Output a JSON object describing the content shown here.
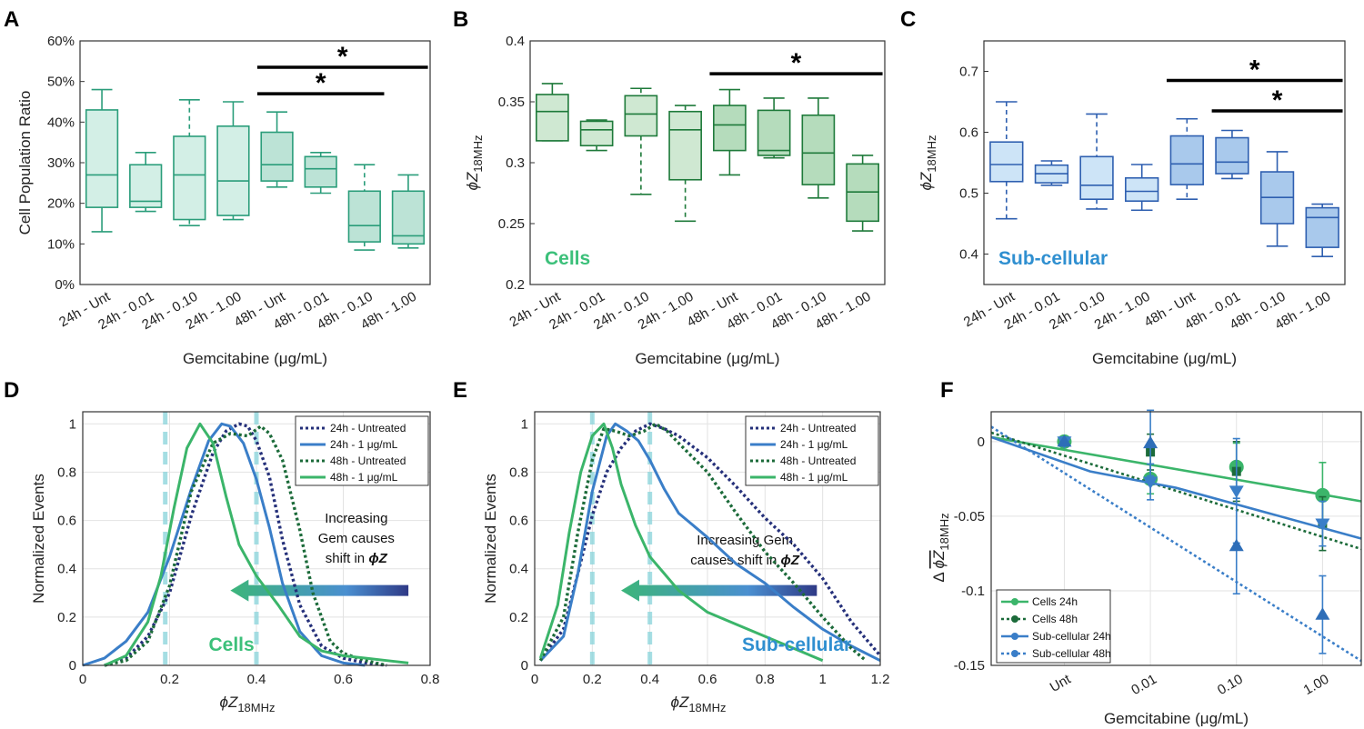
{
  "panel_labels": [
    "A",
    "B",
    "C",
    "D",
    "E",
    "F"
  ],
  "colors": {
    "A_stroke": "#2a9d7a",
    "A_fill": "#d3efe6",
    "A_fill48": "#bce3d6",
    "B_stroke": "#1e7a3a",
    "B_fill": "#cfe8d2",
    "B_fill48": "#b5dcbc",
    "C_stroke": "#2e5fb0",
    "C_fill": "#cde4f7",
    "C_fill48": "#a9c9ec",
    "cells_green": "#3bb56a",
    "sub_blue": "#3a7ec8",
    "navy": "#25307a",
    "darkgreen": "#1c6b3a",
    "cyan": "#8fd6dd",
    "label_cells": "#3cc07a",
    "label_sub": "#2f8fd0"
  },
  "chart_data": [
    {
      "id": "A",
      "type": "box",
      "categories": [
        "24h - Unt",
        "24h - 0.01",
        "24h - 0.10",
        "24h - 1.00",
        "48h - Unt",
        "48h - 0.01",
        "48h - 0.10",
        "48h - 1.00"
      ],
      "boxes": [
        {
          "min": 13,
          "q1": 19,
          "median": 27,
          "q3": 43,
          "max": 48,
          "whisker_top_style": "solid",
          "whisker_bottom_style": "solid"
        },
        {
          "min": 18,
          "q1": 19,
          "median": 20.5,
          "q3": 29.5,
          "max": 32.5
        },
        {
          "min": 14.5,
          "q1": 16,
          "median": 27,
          "q3": 36.5,
          "max": 45.5,
          "dashed": true
        },
        {
          "min": 16,
          "q1": 17,
          "median": 25.5,
          "q3": 39,
          "max": 45
        },
        {
          "min": 24,
          "q1": 25.5,
          "median": 29.5,
          "q3": 37.5,
          "max": 42.5
        },
        {
          "min": 22.5,
          "q1": 24,
          "median": 28.5,
          "q3": 31.5,
          "max": 32.5
        },
        {
          "min": 8.5,
          "q1": 10.5,
          "median": 14.5,
          "q3": 23,
          "max": 29.5,
          "dashed": true
        },
        {
          "min": 9,
          "q1": 10,
          "median": 12,
          "q3": 23,
          "max": 27
        }
      ],
      "ylim": [
        0,
        60
      ],
      "yticks": [
        "0%",
        "10%",
        "20%",
        "30%",
        "40%",
        "50%",
        "60%"
      ],
      "ylabel": "Cell Population Ratio",
      "xlabel": "Gemcitabine (μg/mL)",
      "significance": [
        {
          "from": 4,
          "to": 7,
          "y": 53.5,
          "label": "*"
        },
        {
          "from": 4,
          "to": 6,
          "y": 47,
          "label": "*"
        }
      ]
    },
    {
      "id": "B",
      "type": "box",
      "categories": [
        "24h - Unt",
        "24h - 0.01",
        "24h - 0.10",
        "24h - 1.00",
        "48h - Unt",
        "48h - 0.01",
        "48h - 0.10",
        "48h - 1.00"
      ],
      "boxes": [
        {
          "min": 0.318,
          "q1": 0.318,
          "median": 0.342,
          "q3": 0.356,
          "max": 0.365
        },
        {
          "min": 0.31,
          "q1": 0.314,
          "median": 0.327,
          "q3": 0.334,
          "max": 0.335
        },
        {
          "min": 0.274,
          "q1": 0.322,
          "median": 0.34,
          "q3": 0.355,
          "max": 0.361,
          "dashed": true
        },
        {
          "min": 0.252,
          "q1": 0.286,
          "median": 0.327,
          "q3": 0.342,
          "max": 0.347,
          "dashed": true
        },
        {
          "min": 0.29,
          "q1": 0.31,
          "median": 0.331,
          "q3": 0.347,
          "max": 0.36
        },
        {
          "min": 0.304,
          "q1": 0.306,
          "median": 0.31,
          "q3": 0.343,
          "max": 0.353
        },
        {
          "min": 0.271,
          "q1": 0.282,
          "median": 0.308,
          "q3": 0.339,
          "max": 0.353
        },
        {
          "min": 0.244,
          "q1": 0.252,
          "median": 0.276,
          "q3": 0.299,
          "max": 0.306
        }
      ],
      "ylim": [
        0.2,
        0.4
      ],
      "yticks": [
        "0.2",
        "0.25",
        "0.3",
        "0.35",
        "0.4"
      ],
      "ylabel_main": "ϕZ",
      "ylabel_sub": "18MHz",
      "xlabel": "Gemcitabine (μg/mL)",
      "inset_label": "Cells",
      "significance": [
        {
          "from": 4,
          "to": 7,
          "y": 0.373,
          "label": "*"
        }
      ]
    },
    {
      "id": "C",
      "type": "box",
      "categories": [
        "24h - Unt",
        "24h - 0.01",
        "24h - 0.10",
        "24h - 1.00",
        "48h - Unt",
        "48h - 0.01",
        "48h - 0.10",
        "48h - 1.00"
      ],
      "boxes": [
        {
          "min": 0.458,
          "q1": 0.519,
          "median": 0.547,
          "q3": 0.584,
          "max": 0.65,
          "dashed": true
        },
        {
          "min": 0.513,
          "q1": 0.517,
          "median": 0.532,
          "q3": 0.546,
          "max": 0.553
        },
        {
          "min": 0.474,
          "q1": 0.49,
          "median": 0.513,
          "q3": 0.56,
          "max": 0.63,
          "dashed": true
        },
        {
          "min": 0.472,
          "q1": 0.487,
          "median": 0.503,
          "q3": 0.525,
          "max": 0.547
        },
        {
          "min": 0.49,
          "q1": 0.514,
          "median": 0.548,
          "q3": 0.594,
          "max": 0.622,
          "dashed": true
        },
        {
          "min": 0.524,
          "q1": 0.532,
          "median": 0.551,
          "q3": 0.591,
          "max": 0.603
        },
        {
          "min": 0.413,
          "q1": 0.45,
          "median": 0.493,
          "q3": 0.535,
          "max": 0.568
        },
        {
          "min": 0.396,
          "q1": 0.411,
          "median": 0.46,
          "q3": 0.476,
          "max": 0.482
        }
      ],
      "ylim": [
        0.35,
        0.75
      ],
      "yticks": [
        "0.4",
        "0.5",
        "0.6",
        "0.7"
      ],
      "ytick_values": [
        0.4,
        0.5,
        0.6,
        0.7
      ],
      "ylabel_main": "ϕZ",
      "ylabel_sub": "18MHz",
      "xlabel": "Gemcitabine (μg/mL)",
      "inset_label": "Sub-cellular",
      "significance": [
        {
          "from": 4,
          "to": 7,
          "y": 0.685,
          "label": "*"
        },
        {
          "from": 5,
          "to": 7,
          "y": 0.635,
          "label": "*"
        }
      ]
    },
    {
      "id": "D",
      "type": "line",
      "xlim": [
        0,
        0.8
      ],
      "xticks": [
        "0",
        "0.2",
        "0.4",
        "0.6",
        "0.8"
      ],
      "xtick_values": [
        0,
        0.2,
        0.4,
        0.6,
        0.8
      ],
      "ylim": [
        0,
        1.05
      ],
      "yticks": [
        "0",
        "0.2",
        "0.4",
        "0.6",
        "0.8",
        "1"
      ],
      "ytick_values": [
        0,
        0.2,
        0.4,
        0.6,
        0.8,
        1
      ],
      "ylabel": "Normalized Events",
      "xlabel_main": "ϕZ",
      "xlabel_sub": "18MHz",
      "vlines": [
        0.19,
        0.4
      ],
      "annotation": [
        "Increasing",
        "Gem causes",
        "shift in ϕZ"
      ],
      "inset_label": "Cells",
      "series": [
        {
          "name": "24h - Untreated",
          "style": "dotted",
          "color": "navy",
          "x": [
            0.05,
            0.1,
            0.15,
            0.2,
            0.25,
            0.3,
            0.33,
            0.36,
            0.38,
            0.4,
            0.43,
            0.46,
            0.5,
            0.55,
            0.6,
            0.65,
            0.7
          ],
          "y": [
            0,
            0.03,
            0.12,
            0.3,
            0.62,
            0.88,
            0.97,
            1.0,
            0.99,
            0.93,
            0.78,
            0.52,
            0.25,
            0.08,
            0.03,
            0.01,
            0
          ]
        },
        {
          "name": "24h - 1 μg/mL",
          "style": "solid",
          "color": "sub_blue",
          "x": [
            0,
            0.05,
            0.1,
            0.15,
            0.2,
            0.25,
            0.29,
            0.32,
            0.34,
            0.37,
            0.4,
            0.43,
            0.46,
            0.5,
            0.55,
            0.6,
            0.65
          ],
          "y": [
            0,
            0.03,
            0.1,
            0.22,
            0.45,
            0.73,
            0.93,
            1.0,
            0.99,
            0.92,
            0.77,
            0.57,
            0.34,
            0.14,
            0.04,
            0.01,
            0
          ]
        },
        {
          "name": "48h - Untreated",
          "style": "dotted",
          "color": "darkgreen",
          "x": [
            0.05,
            0.1,
            0.15,
            0.2,
            0.25,
            0.3,
            0.34,
            0.38,
            0.41,
            0.43,
            0.46,
            0.5,
            0.53,
            0.57,
            0.6,
            0.65,
            0.7
          ],
          "y": [
            0,
            0.02,
            0.1,
            0.33,
            0.72,
            0.92,
            0.96,
            0.95,
            0.99,
            0.96,
            0.85,
            0.56,
            0.3,
            0.1,
            0.05,
            0.02,
            0
          ]
        },
        {
          "name": "48h - 1 μg/mL",
          "style": "solid",
          "color": "cells_green",
          "x": [
            0.05,
            0.1,
            0.15,
            0.18,
            0.21,
            0.24,
            0.27,
            0.3,
            0.33,
            0.36,
            0.4,
            0.45,
            0.5,
            0.55,
            0.6,
            0.65,
            0.7,
            0.75
          ],
          "y": [
            0,
            0.04,
            0.18,
            0.37,
            0.65,
            0.9,
            1.0,
            0.92,
            0.7,
            0.5,
            0.37,
            0.25,
            0.12,
            0.06,
            0.04,
            0.03,
            0.02,
            0.01
          ]
        }
      ]
    },
    {
      "id": "E",
      "type": "line",
      "xlim": [
        0,
        1.2
      ],
      "xticks": [
        "0",
        "0.2",
        "0.4",
        "0.6",
        "0.8",
        "1",
        "1.2"
      ],
      "xtick_values": [
        0,
        0.2,
        0.4,
        0.6,
        0.8,
        1,
        1.2
      ],
      "ylim": [
        0,
        1.05
      ],
      "yticks": [
        "0",
        "0.2",
        "0.4",
        "0.6",
        "0.8",
        "1"
      ],
      "ytick_values": [
        0,
        0.2,
        0.4,
        0.6,
        0.8,
        1
      ],
      "ylabel": "Normalized Events",
      "xlabel_main": "ϕZ",
      "xlabel_sub": "18MHz",
      "vlines": [
        0.2,
        0.4
      ],
      "annotation": [
        "Increasing Gem",
        "causes shift in ϕZ"
      ],
      "inset_label": "Sub-cellular",
      "series": [
        {
          "name": "24h - Untreated",
          "style": "dotted",
          "color": "navy",
          "x": [
            0.02,
            0.1,
            0.15,
            0.2,
            0.25,
            0.3,
            0.35,
            0.4,
            0.45,
            0.5,
            0.6,
            0.7,
            0.8,
            0.9,
            1.0,
            1.1,
            1.2
          ],
          "y": [
            0.02,
            0.15,
            0.38,
            0.62,
            0.8,
            0.9,
            0.97,
            1.0,
            0.98,
            0.95,
            0.86,
            0.74,
            0.61,
            0.5,
            0.36,
            0.18,
            0.04
          ]
        },
        {
          "name": "24h - 1 μg/mL",
          "style": "solid",
          "color": "sub_blue",
          "x": [
            0.02,
            0.1,
            0.15,
            0.2,
            0.25,
            0.28,
            0.32,
            0.36,
            0.4,
            0.45,
            0.5,
            0.6,
            0.7,
            0.8,
            0.9,
            1.0,
            1.1,
            1.2
          ],
          "y": [
            0.02,
            0.12,
            0.38,
            0.72,
            0.95,
            1.0,
            0.97,
            0.93,
            0.85,
            0.73,
            0.63,
            0.53,
            0.42,
            0.34,
            0.24,
            0.15,
            0.08,
            0.02
          ]
        },
        {
          "name": "48h - Untreated",
          "style": "dotted",
          "color": "darkgreen",
          "x": [
            0.02,
            0.1,
            0.15,
            0.2,
            0.24,
            0.28,
            0.33,
            0.38,
            0.42,
            0.46,
            0.5,
            0.6,
            0.7,
            0.8,
            0.9,
            1.0,
            1.1,
            1.15
          ],
          "y": [
            0.02,
            0.2,
            0.55,
            0.85,
            0.98,
            0.97,
            0.95,
            0.97,
            1.0,
            0.97,
            0.92,
            0.8,
            0.63,
            0.47,
            0.34,
            0.2,
            0.07,
            0.02
          ]
        },
        {
          "name": "48h - 1 μg/mL",
          "style": "solid",
          "color": "cells_green",
          "x": [
            0.02,
            0.08,
            0.12,
            0.16,
            0.2,
            0.24,
            0.27,
            0.3,
            0.35,
            0.4,
            0.45,
            0.5,
            0.6,
            0.7,
            0.8,
            0.9,
            1.0
          ],
          "y": [
            0.03,
            0.25,
            0.55,
            0.8,
            0.95,
            1.0,
            0.9,
            0.75,
            0.58,
            0.45,
            0.38,
            0.31,
            0.22,
            0.17,
            0.12,
            0.07,
            0.02
          ]
        }
      ]
    },
    {
      "id": "F",
      "type": "line-errorbar",
      "categories": [
        "Unt",
        "0.01",
        "0.10",
        "1.00"
      ],
      "ylim": [
        -0.15,
        0.02
      ],
      "yticks": [
        "-0.15",
        "-0.1",
        "-0.05",
        "0"
      ],
      "ytick_values": [
        -0.15,
        -0.1,
        -0.05,
        0
      ],
      "ylabel_main": "Δ ϕZ",
      "ylabel_sub": "18MHz",
      "xlabel": "Gemcitabine (μg/mL)",
      "series": [
        {
          "name": "Cells 24h",
          "marker": "circle",
          "style": "solid",
          "color": "cells_green",
          "y": [
            0,
            -0.025,
            -0.017,
            -0.036
          ],
          "err": [
            0.003,
            0.01,
            0.016,
            0.022
          ],
          "fit": [
            [
              -0.85,
              0.003
            ],
            [
              3.45,
              -0.04
            ]
          ]
        },
        {
          "name": "Cells 48h",
          "marker": "square",
          "style": "dotted",
          "color": "darkgreen",
          "y": [
            0,
            -0.007,
            -0.02,
            -0.055
          ],
          "err": [
            0.003,
            0.012,
            0.02,
            0.018
          ],
          "fit": [
            [
              -0.85,
              0.006
            ],
            [
              3.45,
              -0.072
            ]
          ]
        },
        {
          "name": "Sub-cellular 24h",
          "marker": "tri-down",
          "style": "solid",
          "color": "sub_blue",
          "y": [
            0,
            -0.027,
            -0.033,
            -0.055
          ],
          "err": [
            0.003,
            0.012,
            0.035,
            0.015
          ],
          "fit": [
            [
              -0.85,
              0.003
            ],
            [
              0.3,
              -0.02
            ],
            [
              1.3,
              -0.031
            ],
            [
              3.45,
              -0.065
            ]
          ]
        },
        {
          "name": "Sub-cellular 48h",
          "marker": "tri-up",
          "style": "dotted",
          "color": "sub_blue",
          "y": [
            0,
            -0.001,
            -0.07,
            -0.116
          ],
          "err": [
            0.003,
            0.022,
            0.032,
            0.026
          ],
          "fit": [
            [
              -0.85,
              0.01
            ],
            [
              3.45,
              -0.147
            ]
          ]
        }
      ]
    }
  ]
}
